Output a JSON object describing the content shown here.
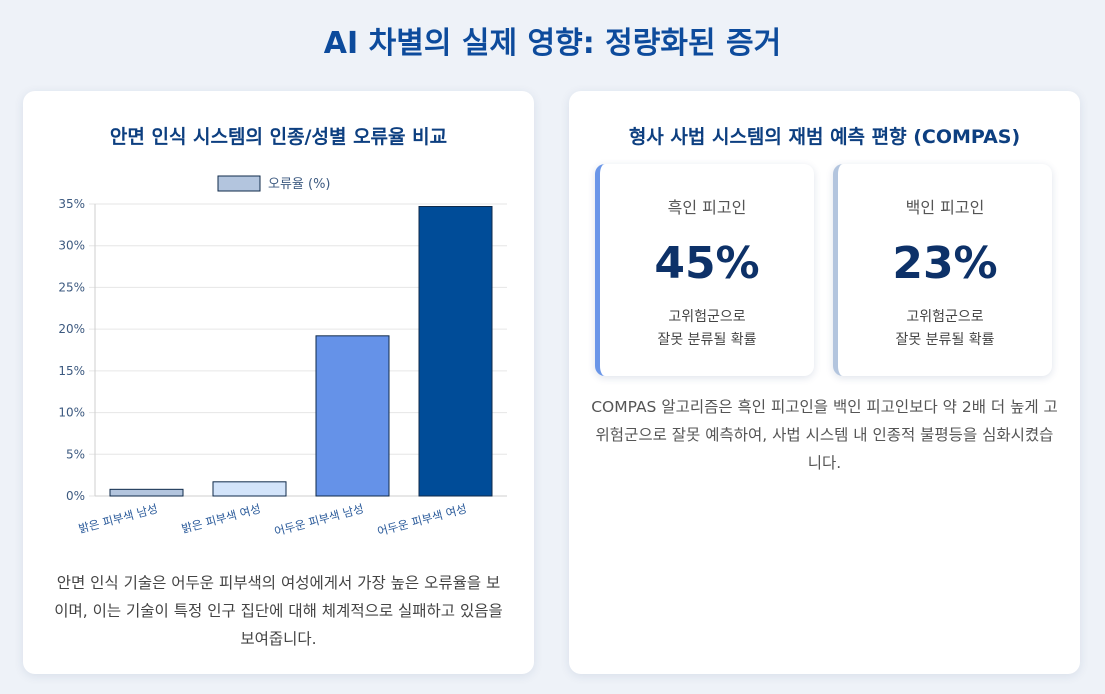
{
  "page": {
    "title": "AI 차별의 실제 영향: 정량화된 증거"
  },
  "left_card": {
    "title": "안면 인식 시스템의 인종/성별 오류율 비교",
    "description": "안면 인식 기술은 어두운 피부색의 여성에게서 가장 높은 오류율을 보이며, 이는 기술이 특정 인구 집단에 대해 체계적으로 실패하고 있음을 보여줍니다."
  },
  "chart_data": {
    "type": "bar",
    "categories": [
      "밝은 피부색 남성",
      "밝은 피부색 여성",
      "어두운 피부색 남성",
      "어두운 피부색 여성"
    ],
    "series": [
      {
        "name": "오류율 (%)",
        "values": [
          0.8,
          1.7,
          19.2,
          34.7
        ]
      }
    ],
    "bar_colors": [
      "#b3c5de",
      "#d3e4fa",
      "#6592e8",
      "#004c98"
    ],
    "legend_color": "#b3c5de",
    "y_ticks": [
      "0%",
      "5%",
      "10%",
      "15%",
      "20%",
      "25%",
      "30%",
      "35%"
    ],
    "ylim": [
      0,
      35
    ],
    "legend_position": "top",
    "grid": true
  },
  "right_card": {
    "title": "형사 사법 시스템의 재범 예측 편향 (COMPAS)",
    "stats": [
      {
        "label": "흑인 피고인",
        "value": "45%",
        "caption_line1": "고위험군으로",
        "caption_line2": "잘못 분류될 확률",
        "accent": "#6a96e8"
      },
      {
        "label": "백인 피고인",
        "value": "23%",
        "caption_line1": "고위험군으로",
        "caption_line2": "잘못 분류될 확률",
        "accent": "#b3c5de"
      }
    ],
    "description": "COMPAS 알고리즘은 흑인 피고인을 백인 피고인보다 약 2배 더 높게 고위험군으로 잘못 예측하여, 사법 시스템 내 인종적 불평등을 심화시켰습니다."
  }
}
